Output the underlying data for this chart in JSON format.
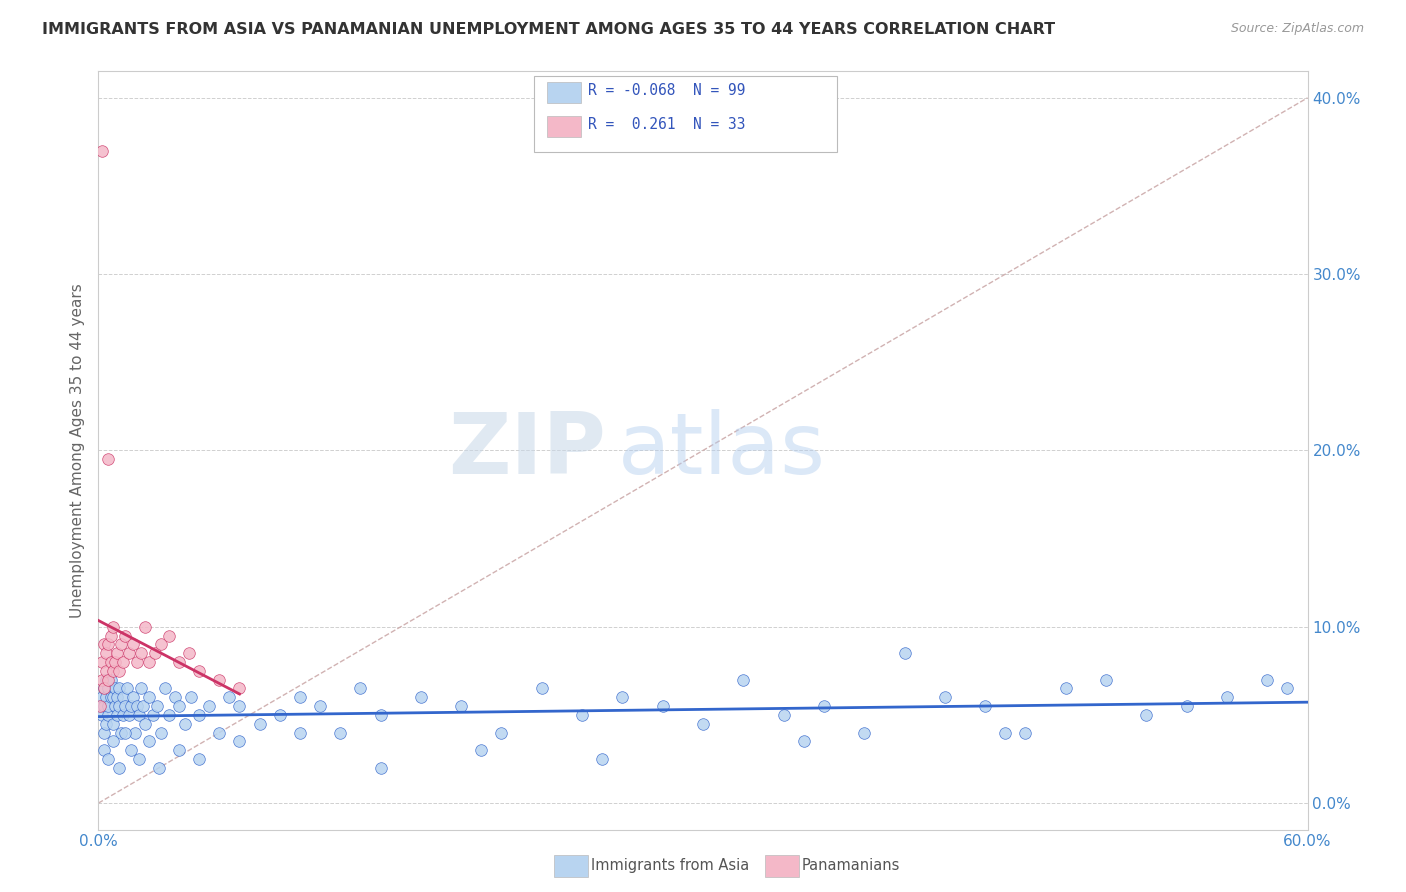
{
  "title": "IMMIGRANTS FROM ASIA VS PANAMANIAN UNEMPLOYMENT AMONG AGES 35 TO 44 YEARS CORRELATION CHART",
  "source": "Source: ZipAtlas.com",
  "ylabel": "Unemployment Among Ages 35 to 44 years",
  "legend_series": [
    {
      "label": "Immigrants from Asia",
      "R": -0.068,
      "N": 99,
      "color": "#b8d4f0",
      "line_color": "#3366cc"
    },
    {
      "label": "Panamanians",
      "R": 0.261,
      "N": 33,
      "color": "#f4b8c8",
      "line_color": "#cc3366"
    }
  ],
  "xlim": [
    0.0,
    0.6
  ],
  "ylim": [
    -0.015,
    0.415
  ],
  "yticks_right": [
    0.0,
    0.1,
    0.2,
    0.3,
    0.4
  ],
  "ytick_labels_right": [
    "0.0%",
    "10.0%",
    "20.0%",
    "30.0%",
    "40.0%"
  ],
  "xticks": [
    0.0,
    0.1,
    0.2,
    0.3,
    0.4,
    0.5,
    0.6
  ],
  "xtick_labels_sparse": [
    "0.0%",
    "",
    "",
    "",
    "",
    "",
    "60.0%"
  ],
  "watermark_zip": "ZIP",
  "watermark_atlas": "atlas",
  "background_color": "#ffffff",
  "grid_color": "#d0d0d0",
  "blue_x": [
    0.001,
    0.002,
    0.002,
    0.003,
    0.003,
    0.003,
    0.004,
    0.004,
    0.004,
    0.005,
    0.005,
    0.005,
    0.006,
    0.006,
    0.007,
    0.007,
    0.008,
    0.008,
    0.009,
    0.009,
    0.01,
    0.01,
    0.011,
    0.012,
    0.012,
    0.013,
    0.014,
    0.015,
    0.016,
    0.017,
    0.018,
    0.019,
    0.02,
    0.021,
    0.022,
    0.023,
    0.025,
    0.027,
    0.029,
    0.031,
    0.033,
    0.035,
    0.038,
    0.04,
    0.043,
    0.046,
    0.05,
    0.055,
    0.06,
    0.065,
    0.07,
    0.08,
    0.09,
    0.1,
    0.11,
    0.12,
    0.13,
    0.14,
    0.16,
    0.18,
    0.2,
    0.22,
    0.24,
    0.26,
    0.28,
    0.3,
    0.32,
    0.34,
    0.36,
    0.38,
    0.4,
    0.42,
    0.44,
    0.46,
    0.48,
    0.5,
    0.52,
    0.54,
    0.56,
    0.58,
    0.59,
    0.003,
    0.005,
    0.007,
    0.01,
    0.013,
    0.016,
    0.02,
    0.025,
    0.03,
    0.04,
    0.05,
    0.07,
    0.1,
    0.14,
    0.19,
    0.25,
    0.35,
    0.45
  ],
  "blue_y": [
    0.055,
    0.05,
    0.06,
    0.04,
    0.055,
    0.065,
    0.045,
    0.06,
    0.07,
    0.05,
    0.055,
    0.065,
    0.06,
    0.07,
    0.045,
    0.06,
    0.055,
    0.065,
    0.05,
    0.06,
    0.055,
    0.065,
    0.04,
    0.05,
    0.06,
    0.055,
    0.065,
    0.05,
    0.055,
    0.06,
    0.04,
    0.055,
    0.05,
    0.065,
    0.055,
    0.045,
    0.06,
    0.05,
    0.055,
    0.04,
    0.065,
    0.05,
    0.06,
    0.055,
    0.045,
    0.06,
    0.05,
    0.055,
    0.04,
    0.06,
    0.055,
    0.045,
    0.05,
    0.06,
    0.055,
    0.04,
    0.065,
    0.05,
    0.06,
    0.055,
    0.04,
    0.065,
    0.05,
    0.06,
    0.055,
    0.045,
    0.07,
    0.05,
    0.055,
    0.04,
    0.085,
    0.06,
    0.055,
    0.04,
    0.065,
    0.07,
    0.05,
    0.055,
    0.06,
    0.07,
    0.065,
    0.03,
    0.025,
    0.035,
    0.02,
    0.04,
    0.03,
    0.025,
    0.035,
    0.02,
    0.03,
    0.025,
    0.035,
    0.04,
    0.02,
    0.03,
    0.025,
    0.035,
    0.04
  ],
  "pink_x": [
    0.001,
    0.002,
    0.002,
    0.003,
    0.003,
    0.004,
    0.004,
    0.005,
    0.005,
    0.006,
    0.006,
    0.007,
    0.007,
    0.008,
    0.009,
    0.01,
    0.011,
    0.012,
    0.013,
    0.015,
    0.017,
    0.019,
    0.021,
    0.023,
    0.025,
    0.028,
    0.031,
    0.035,
    0.04,
    0.045,
    0.05,
    0.06,
    0.07
  ],
  "pink_y": [
    0.055,
    0.07,
    0.08,
    0.065,
    0.09,
    0.075,
    0.085,
    0.07,
    0.09,
    0.08,
    0.095,
    0.075,
    0.1,
    0.08,
    0.085,
    0.075,
    0.09,
    0.08,
    0.095,
    0.085,
    0.09,
    0.08,
    0.085,
    0.1,
    0.08,
    0.085,
    0.09,
    0.095,
    0.08,
    0.085,
    0.075,
    0.07,
    0.065
  ],
  "pink_outlier_x": [
    0.002
  ],
  "pink_outlier_y": [
    0.37
  ],
  "pink_outlier2_x": [
    0.005
  ],
  "pink_outlier2_y": [
    0.195
  ]
}
